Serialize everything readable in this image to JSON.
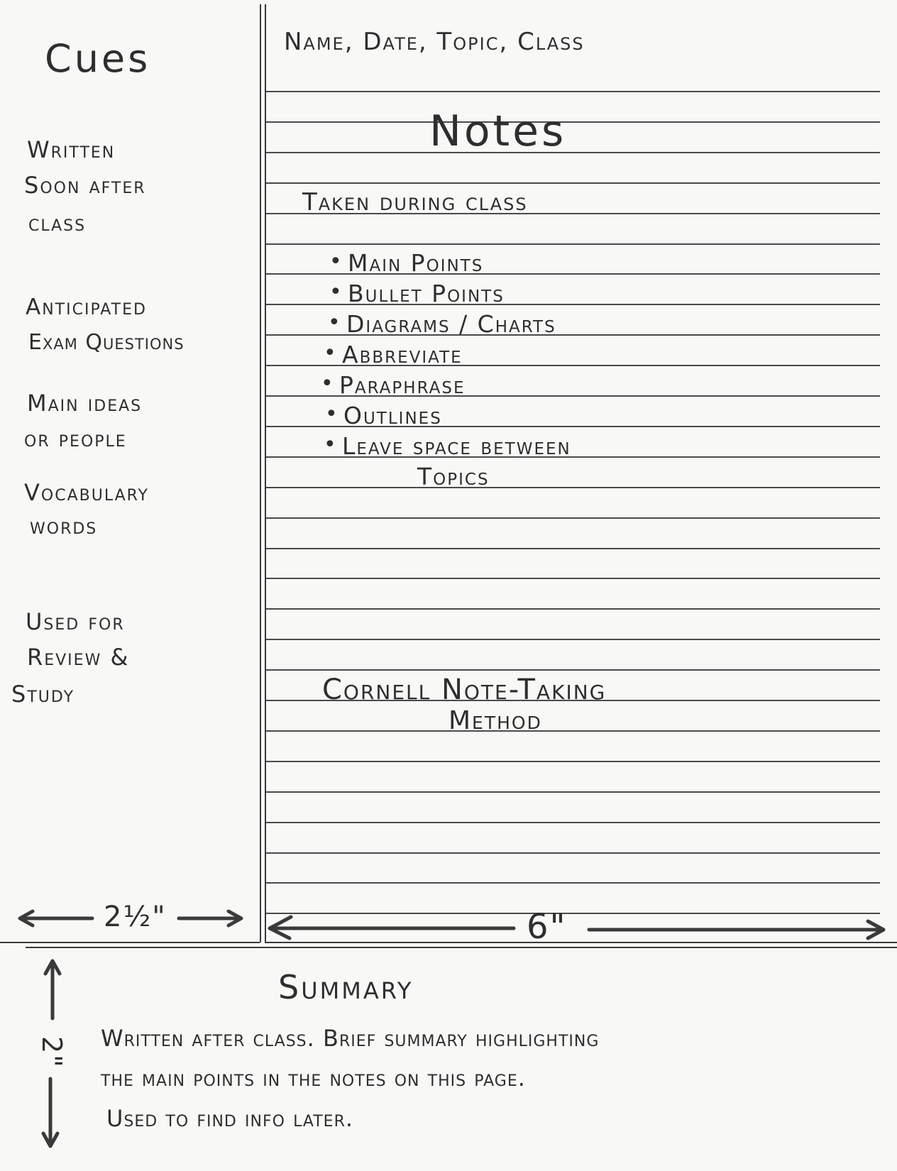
{
  "cues": {
    "heading": "Cues",
    "items": [
      [
        "Written",
        "Soon after",
        "class"
      ],
      [
        "Anticipated",
        "Exam Questions"
      ],
      [
        "Main ideas",
        "or people"
      ],
      [
        "Vocabulary",
        "words"
      ],
      [
        "Used for",
        "Review &",
        "Study"
      ]
    ]
  },
  "notes": {
    "header": "Name, Date, Topic, Class",
    "heading": "Notes",
    "subheading": "Taken during class",
    "bullets": [
      "Main Points",
      "Bullet Points",
      "Diagrams / Charts",
      "Abbreviate",
      "Paraphrase",
      "Outlines",
      "Leave space between",
      "Topics"
    ],
    "title_line1": "Cornell Note-Taking",
    "title_line2": "Method"
  },
  "dimensions": {
    "cue_width": "2½\"",
    "notes_width": "6\"",
    "summary_height": "2\""
  },
  "summary": {
    "heading": "Summary",
    "lines": [
      "Written after class. Brief summary highlighting",
      "the main points in the notes on this page.",
      "Used to find info later."
    ]
  }
}
